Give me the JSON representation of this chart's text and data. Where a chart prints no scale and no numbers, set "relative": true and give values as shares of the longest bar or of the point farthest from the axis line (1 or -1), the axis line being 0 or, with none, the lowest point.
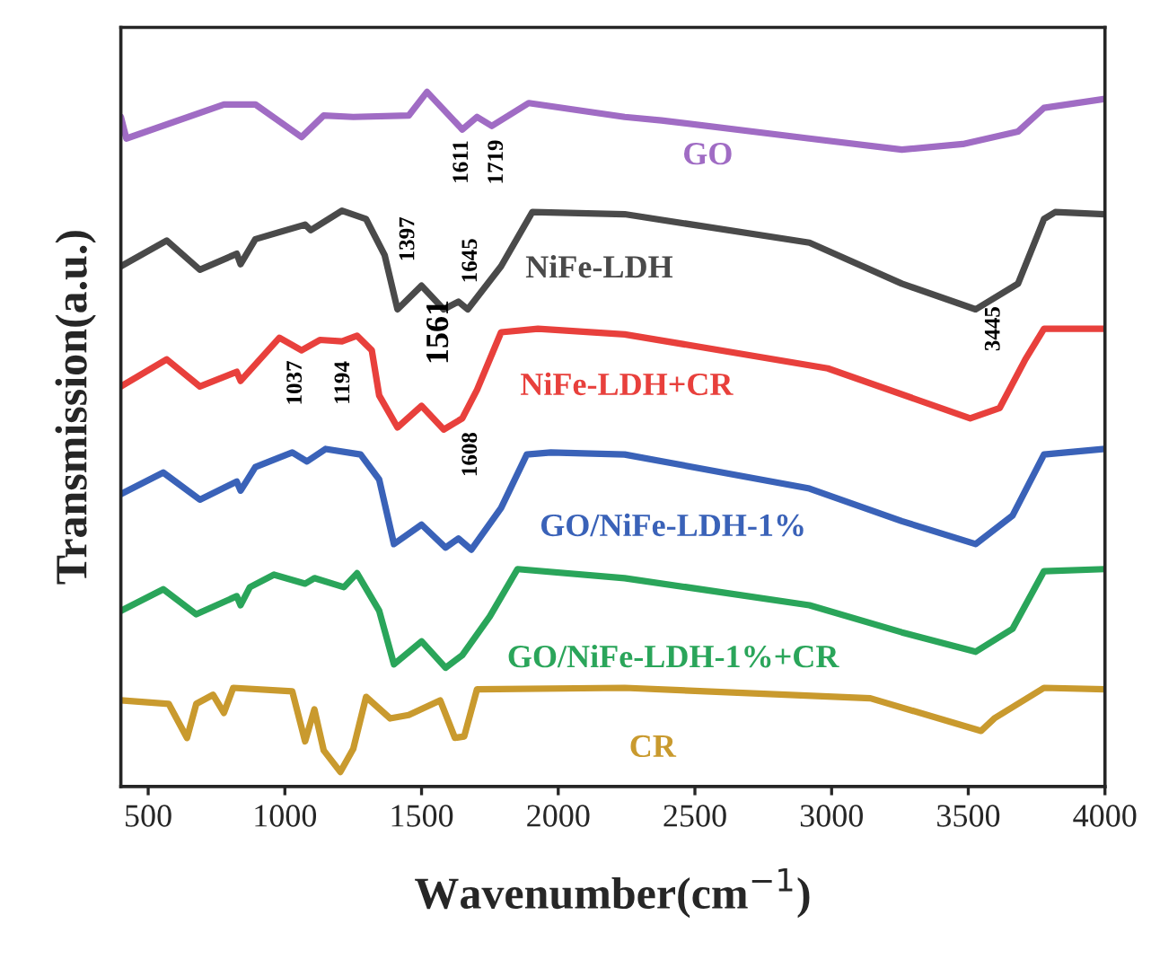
{
  "chart_data": {
    "type": "line",
    "relative": true,
    "xlabel": "Wavenumber(cm$^{−1}$)",
    "ylabel": "Transmission(a.u.)",
    "xlim": [
      400,
      4000
    ],
    "xticks": [
      500,
      1000,
      1500,
      2000,
      2500,
      3000,
      3500,
      4000
    ],
    "tick_labels": "x",
    "grid": false,
    "legend": false,
    "line_style": "solid",
    "marker": "none",
    "series": [
      {
        "name": "GO",
        "color": "#a06cc4",
        "x": [
          400,
          420,
          777,
          892,
          1061,
          1142,
          1250,
          1453,
          1520,
          1649,
          1703,
          1757,
          1892,
          2243,
          2378,
          2919,
          3257,
          3480,
          3682,
          3777,
          4000
        ],
        "values": [
          0.964,
          0.933,
          0.982,
          0.982,
          0.935,
          0.966,
          0.964,
          0.966,
          1.0,
          0.946,
          0.964,
          0.951,
          0.984,
          0.964,
          0.959,
          0.933,
          0.917,
          0.925,
          0.943,
          0.977,
          0.99
        ]
      },
      {
        "name": "NiFe-LDH",
        "color": "#4a4a4a",
        "x": [
          400,
          568,
          689,
          824,
          838,
          892,
          1074,
          1095,
          1209,
          1297,
          1365,
          1412,
          1500,
          1581,
          1635,
          1669,
          1791,
          1905,
          2243,
          2919,
          3257,
          3527,
          3682,
          3777,
          3818,
          4000
        ],
        "values": [
          0.749,
          0.786,
          0.744,
          0.767,
          0.752,
          0.788,
          0.809,
          0.801,
          0.829,
          0.817,
          0.765,
          0.687,
          0.721,
          0.687,
          0.698,
          0.687,
          0.749,
          0.827,
          0.824,
          0.783,
          0.724,
          0.687,
          0.724,
          0.817,
          0.827,
          0.824
        ]
      },
      {
        "name": "NiFe-LDH+CR",
        "color": "#e8403c",
        "x": [
          400,
          568,
          689,
          824,
          838,
          980,
          1061,
          1128,
          1209,
          1264,
          1318,
          1345,
          1412,
          1500,
          1581,
          1649,
          1703,
          1791,
          1926,
          2243,
          2986,
          3507,
          3615,
          3709,
          3777,
          4000
        ],
        "values": [
          0.576,
          0.615,
          0.576,
          0.597,
          0.584,
          0.646,
          0.628,
          0.643,
          0.641,
          0.649,
          0.628,
          0.563,
          0.517,
          0.548,
          0.514,
          0.53,
          0.571,
          0.654,
          0.659,
          0.651,
          0.602,
          0.53,
          0.545,
          0.615,
          0.659,
          0.659
        ]
      },
      {
        "name": "GO/NiFe-LDH-1%",
        "color": "#3a62b8",
        "x": [
          400,
          555,
          689,
          824,
          838,
          892,
          1027,
          1081,
          1149,
          1277,
          1345,
          1399,
          1500,
          1588,
          1635,
          1682,
          1791,
          1885,
          1973,
          2243,
          2919,
          3257,
          3527,
          3662,
          3777,
          4000
        ],
        "values": [
          0.421,
          0.452,
          0.413,
          0.439,
          0.426,
          0.46,
          0.481,
          0.468,
          0.486,
          0.478,
          0.442,
          0.349,
          0.377,
          0.344,
          0.357,
          0.341,
          0.401,
          0.478,
          0.481,
          0.478,
          0.429,
          0.382,
          0.349,
          0.39,
          0.478,
          0.486
        ]
      },
      {
        "name": "GO/NiFe-LDH-1%+CR",
        "color": "#2aa55a",
        "x": [
          400,
          555,
          676,
          824,
          838,
          872,
          960,
          1074,
          1108,
          1216,
          1264,
          1345,
          1399,
          1500,
          1588,
          1649,
          1750,
          1851,
          2243,
          2919,
          3257,
          3527,
          3662,
          3777,
          4000
        ],
        "values": [
          0.253,
          0.284,
          0.248,
          0.274,
          0.261,
          0.287,
          0.305,
          0.292,
          0.3,
          0.287,
          0.307,
          0.253,
          0.176,
          0.209,
          0.171,
          0.189,
          0.245,
          0.313,
          0.3,
          0.261,
          0.222,
          0.194,
          0.227,
          0.31,
          0.313
        ]
      },
      {
        "name": "CR",
        "color": "#c99a2e",
        "x": [
          400,
          575,
          642,
          676,
          737,
          777,
          811,
          1027,
          1074,
          1108,
          1142,
          1203,
          1250,
          1297,
          1385,
          1453,
          1568,
          1622,
          1656,
          1703,
          2243,
          3142,
          3547,
          3595,
          3777,
          4000
        ],
        "values": [
          0.124,
          0.119,
          0.07,
          0.119,
          0.132,
          0.106,
          0.142,
          0.137,
          0.065,
          0.111,
          0.052,
          0.021,
          0.054,
          0.129,
          0.098,
          0.103,
          0.124,
          0.07,
          0.072,
          0.14,
          0.142,
          0.127,
          0.08,
          0.098,
          0.142,
          0.14
        ]
      }
    ],
    "annotations": [
      "1611",
      "1719",
      "1397",
      "1645",
      "1561",
      "1037",
      "1194",
      "1608",
      "3445"
    ]
  }
}
